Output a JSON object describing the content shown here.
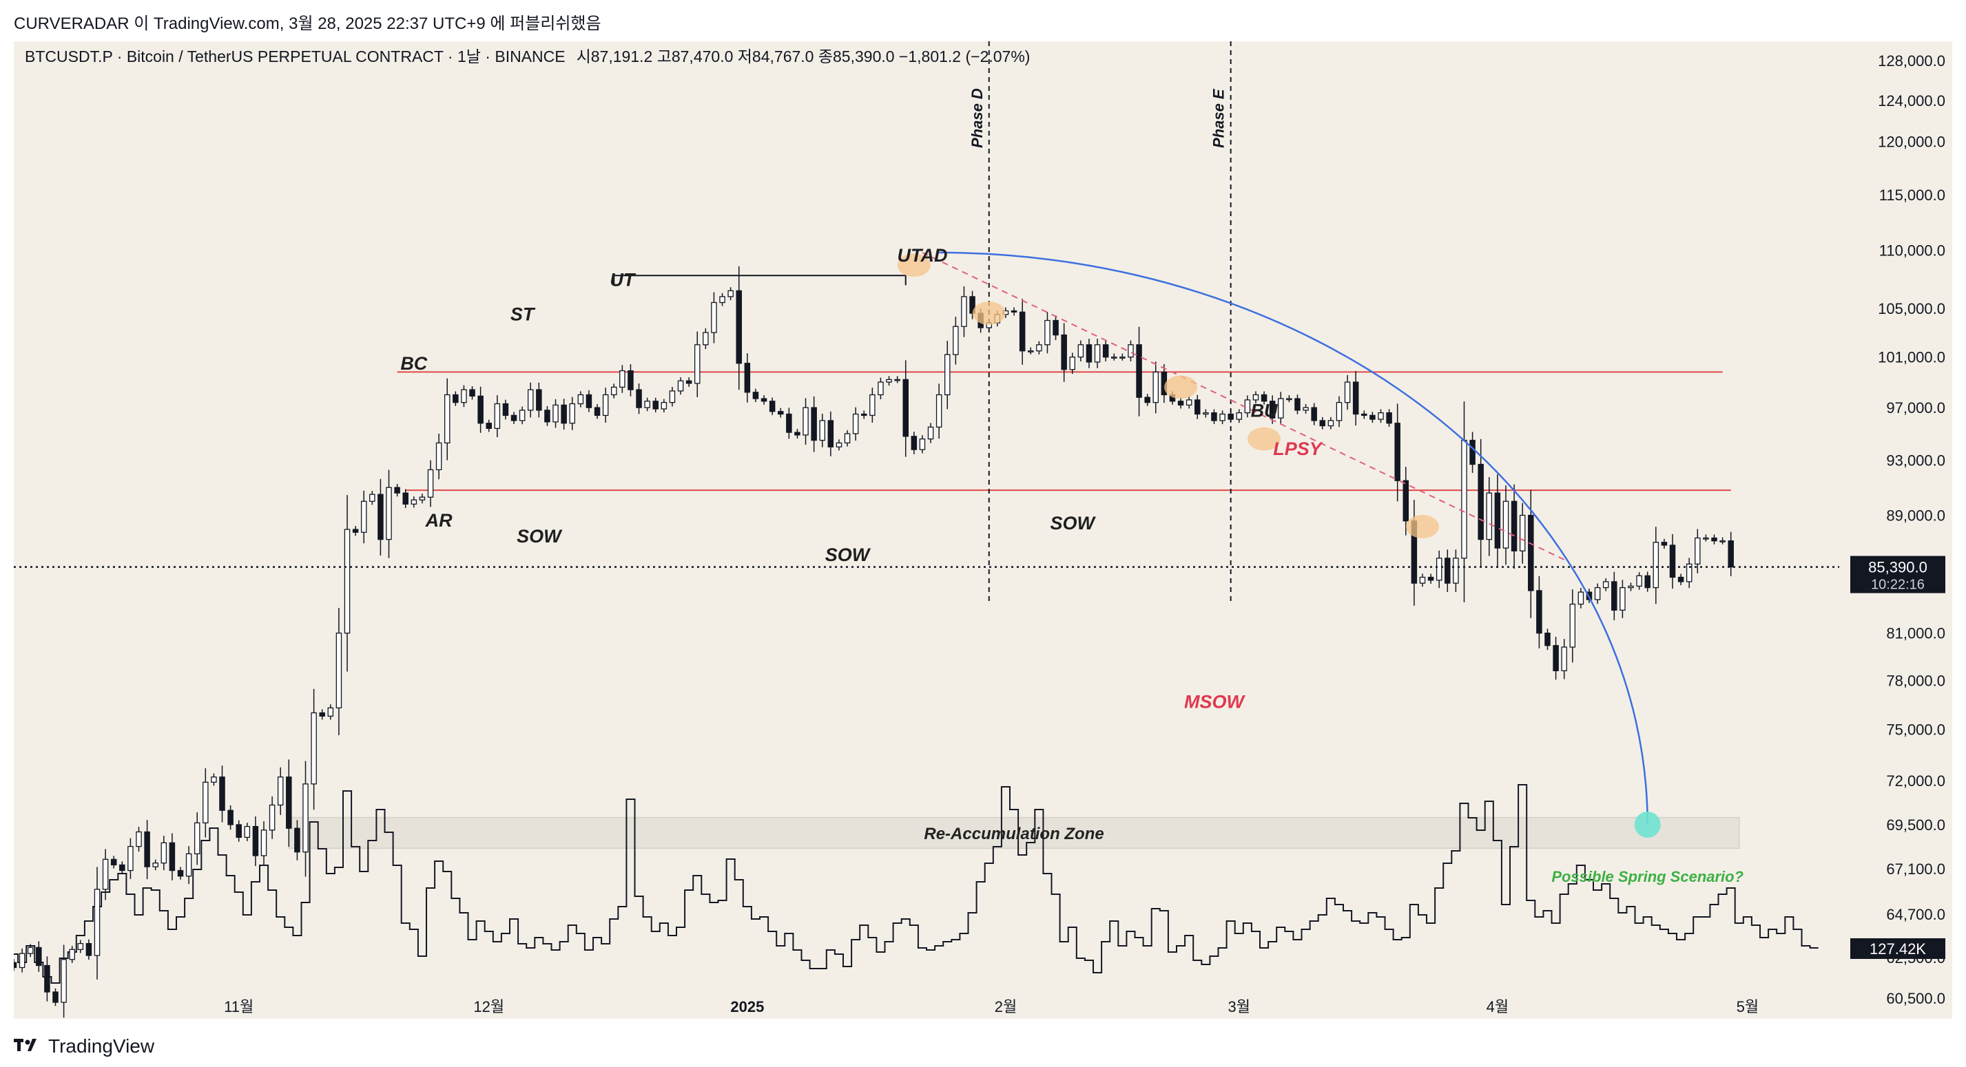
{
  "header": {
    "attribution": "CURVERADAR 이 TradingView.com, 3월 28, 2025 22:37 UTC+9 에 퍼블리쉬했음",
    "symbol_line": "BTCUSDT.P · Bitcoin / TetherUS PERPETUAL CONTRACT · 1날 · BINANCE",
    "ohlc": "시87,191.2 고87,470.0 저84,767.0 종85,390.0 −1,801.2 (−2.07%)"
  },
  "footer": {
    "brand": "TradingView",
    "logo_icon": "tradingview-logo-icon"
  },
  "colors": {
    "background": "#f3efe7",
    "candle": "#131722",
    "range_line": "#e04848",
    "arc": "#3d6fe0",
    "dashed_trend": "#e0607a",
    "phase_label_red": "#e0384e",
    "spring_label": "#3cb043",
    "highlight": "#f5c48a",
    "target_dot": "#6fe3d0"
  },
  "chart_data": {
    "type": "candlestick",
    "price_axis": {
      "scale": "log",
      "ylim": [
        60500,
        130000
      ],
      "ticks": [
        "128,000.0",
        "124,000.0",
        "120,000.0",
        "115,000.0",
        "110,000.0",
        "105,000.0",
        "101,000.0",
        "97,000.0",
        "93,000.0",
        "89,000.0",
        "81,000.0",
        "78,000.0",
        "75,000.0",
        "72,000.0",
        "69,500.0",
        "67,100.0",
        "64,700.0",
        "62,500.0",
        "60,500.0"
      ],
      "last_price": "85,390.0",
      "countdown": "10:22:16",
      "volume_readout": "127.42K"
    },
    "time_axis": {
      "start": "2024-10-05",
      "end": "2025-05-12",
      "ticks": [
        {
          "date": "2024-11-01",
          "label": "11월",
          "bold": false
        },
        {
          "date": "2024-12-01",
          "label": "12월",
          "bold": false
        },
        {
          "date": "2025-01-01",
          "label": "2025",
          "bold": true
        },
        {
          "date": "2025-02-01",
          "label": "2월",
          "bold": false
        },
        {
          "date": "2025-03-01",
          "label": "3월",
          "bold": false
        },
        {
          "date": "2025-04-01",
          "label": "4월",
          "bold": false
        },
        {
          "date": "2025-05-01",
          "label": "5월",
          "bold": false
        }
      ]
    },
    "series": [
      {
        "start": "2024-10-05",
        "close": [
          62000,
          62700,
          63000,
          62100,
          60800,
          60300,
          62400,
          62900,
          63200,
          62600,
          66000,
          67600,
          67300,
          67000,
          68300,
          69100,
          67200,
          67400,
          68500,
          67000,
          66700,
          67900,
          69600,
          71900,
          72200,
          70300,
          69500,
          68800,
          69400,
          67800,
          69200,
          70600,
          72200,
          69300,
          68000,
          71800,
          76000,
          75800,
          76300,
          81000,
          88000,
          87800,
          90000,
          90500,
          87300,
          91000,
          90600,
          89800,
          90100,
          90300,
          92300,
          94300,
          98000,
          97400,
          98400,
          97900,
          95800,
          95400,
          97300,
          96400,
          96000,
          96800,
          98400,
          96800,
          95900,
          97200,
          95800,
          97300,
          98000,
          97000,
          96400,
          98000,
          98600,
          99900,
          98400,
          97000,
          97500,
          96900,
          97400,
          98300,
          99100,
          98900,
          102000,
          103000,
          105500,
          106000,
          106500,
          100500,
          98200,
          97700,
          97500,
          96700,
          96500,
          95100,
          94900,
          97000,
          94500,
          96000,
          94000,
          94300,
          95000,
          96500,
          96400,
          98000,
          99000,
          99200,
          99200,
          94800,
          93800,
          94600,
          95500,
          98000,
          101200,
          103500,
          106000,
          104600,
          103400,
          103800,
          104500,
          104800,
          104700,
          101500,
          101500,
          102000,
          104000,
          102800,
          100000,
          101000,
          102000,
          100600,
          102000,
          101000,
          101000,
          101000,
          102000,
          97800,
          97400,
          99800,
          98000,
          97500,
          97200,
          97600,
          96500,
          96600,
          96000,
          96500,
          96100,
          96600,
          97600,
          98000,
          97500,
          96200,
          97700,
          97700,
          96800,
          97000,
          96000,
          95600,
          96000,
          97400,
          99000,
          96500,
          96400,
          96100,
          96600,
          95800,
          91500,
          88600,
          84300,
          84700,
          84500,
          86000,
          84300,
          86000,
          94500,
          92700,
          87300,
          90600,
          86700,
          90000,
          86500,
          89000,
          83800,
          81000,
          80200,
          78600,
          80100,
          82900,
          83700,
          83200,
          84000,
          84400,
          82500,
          84000,
          84100,
          84800,
          84000,
          87100,
          86900,
          84700,
          84400,
          85600,
          87400,
          87400,
          87200,
          87200,
          85400
        ]
      },
      {
        "name": "volume",
        "relative_levels": [
          0.18,
          0.14,
          0.22,
          0.14,
          0.07,
          0.04,
          0.16,
          0.19,
          0.27,
          0.34,
          0.41,
          0.48,
          0.54,
          0.57,
          0.47,
          0.37,
          0.5,
          0.49,
          0.39,
          0.3,
          0.36,
          0.45,
          0.59,
          0.73,
          0.79,
          0.66,
          0.56,
          0.48,
          0.37,
          0.53,
          0.61,
          0.49,
          0.36,
          0.31,
          0.27,
          0.43,
          0.82,
          0.69,
          0.57,
          0.6,
          0.97,
          0.7,
          0.58,
          0.73,
          0.88,
          0.77,
          0.61,
          0.33,
          0.3,
          0.17,
          0.5,
          0.63,
          0.58,
          0.45,
          0.38,
          0.25,
          0.34,
          0.29,
          0.24,
          0.28,
          0.35,
          0.23,
          0.21,
          0.26,
          0.23,
          0.2,
          0.24,
          0.32,
          0.28,
          0.2,
          0.26,
          0.23,
          0.35,
          0.41,
          0.93,
          0.46,
          0.36,
          0.29,
          0.33,
          0.27,
          0.31,
          0.49,
          0.56,
          0.47,
          0.43,
          0.44,
          0.64,
          0.54,
          0.41,
          0.35,
          0.36,
          0.29,
          0.22,
          0.28,
          0.2,
          0.15,
          0.11,
          0.11,
          0.2,
          0.18,
          0.12,
          0.25,
          0.32,
          0.26,
          0.19,
          0.24,
          0.33,
          0.35,
          0.32,
          0.21,
          0.2,
          0.22,
          0.24,
          0.25,
          0.28,
          0.38,
          0.53,
          0.62,
          0.7,
          0.99,
          0.88,
          0.66,
          0.72,
          0.88,
          0.57,
          0.47,
          0.24,
          0.31,
          0.16,
          0.15,
          0.09,
          0.24,
          0.34,
          0.22,
          0.29,
          0.26,
          0.22,
          0.4,
          0.39,
          0.19,
          0.22,
          0.27,
          0.15,
          0.13,
          0.17,
          0.21,
          0.34,
          0.28,
          0.33,
          0.29,
          0.21,
          0.24,
          0.31,
          0.29,
          0.25,
          0.3,
          0.34,
          0.37,
          0.45,
          0.42,
          0.39,
          0.34,
          0.33,
          0.38,
          0.36,
          0.3,
          0.25,
          0.26,
          0.42,
          0.37,
          0.33,
          0.5,
          0.62,
          0.68,
          0.91,
          0.84,
          0.78,
          0.92,
          0.73,
          0.42,
          0.7,
          1.0,
          0.44,
          0.36,
          0.39,
          0.33,
          0.47,
          0.52,
          0.61,
          0.54,
          0.49,
          0.52,
          0.45,
          0.38,
          0.41,
          0.33,
          0.36,
          0.32,
          0.3,
          0.28,
          0.25,
          0.28,
          0.36,
          0.36,
          0.42,
          0.47,
          0.5,
          0.33,
          0.36,
          0.32,
          0.26,
          0.3,
          0.28,
          0.36,
          0.3,
          0.22,
          0.21
        ]
      }
    ],
    "levels": [
      {
        "kind": "range-top",
        "price": 99800,
        "from": "2024-11-20",
        "to": "2025-04-28"
      },
      {
        "kind": "range-bottom",
        "price": 90800,
        "from": "2024-11-21",
        "to": "2025-04-29"
      },
      {
        "kind": "ut-line",
        "price": 107800,
        "from": "2024-12-16",
        "to": "2025-01-20"
      },
      {
        "kind": "zone",
        "price_low": 68200,
        "price_high": 69900,
        "from": "2024-11-07",
        "to": "2025-04-30",
        "label": "Re-Accumulation Zone"
      }
    ],
    "annotations": [
      {
        "text": "BC",
        "date": "2024-11-22",
        "price": 100000,
        "style": "dark"
      },
      {
        "text": "AR",
        "date": "2024-11-25",
        "price": 88200,
        "style": "dark"
      },
      {
        "text": "ST",
        "date": "2024-12-05",
        "price": 104000,
        "style": "dark"
      },
      {
        "text": "SOW",
        "date": "2024-12-07",
        "price": 87100,
        "style": "dark"
      },
      {
        "text": "UT",
        "date": "2024-12-17",
        "price": 106900,
        "style": "dark"
      },
      {
        "text": "SOW",
        "date": "2025-01-13",
        "price": 85800,
        "style": "dark"
      },
      {
        "text": "UTAD",
        "date": "2025-01-22",
        "price": 109000,
        "style": "dark"
      },
      {
        "text": "SOW",
        "date": "2025-02-09",
        "price": 88000,
        "style": "dark"
      },
      {
        "text": "MSOW",
        "date": "2025-02-26",
        "price": 76300,
        "style": "red"
      },
      {
        "text": "BU",
        "date": "2025-03-04",
        "price": 96300,
        "style": "dark"
      },
      {
        "text": "LPSY",
        "date": "2025-03-08",
        "price": 93400,
        "style": "red"
      },
      {
        "text": "Possible Spring Scenario?",
        "date": "2025-04-19",
        "price": 66400,
        "style": "green"
      }
    ],
    "phase_lines": [
      {
        "label": "Phase D",
        "date": "2025-01-30"
      },
      {
        "label": "Phase E",
        "date": "2025-02-28"
      }
    ],
    "highlights": [
      {
        "date": "2025-01-21",
        "price": 108700
      },
      {
        "date": "2025-01-30",
        "price": 104600
      },
      {
        "date": "2025-02-22",
        "price": 98600
      },
      {
        "date": "2025-03-04",
        "price": 94600
      },
      {
        "date": "2025-03-23",
        "price": 88200
      }
    ],
    "projections": [
      {
        "kind": "dashed-trend",
        "from_date": "2025-01-22",
        "from_price": 109800,
        "to_date": "2025-04-09",
        "to_price": 85900
      },
      {
        "kind": "arc",
        "from_date": "2025-01-24",
        "from_price": 109800,
        "to_date": "2025-04-19",
        "to_price": 69500
      }
    ]
  }
}
